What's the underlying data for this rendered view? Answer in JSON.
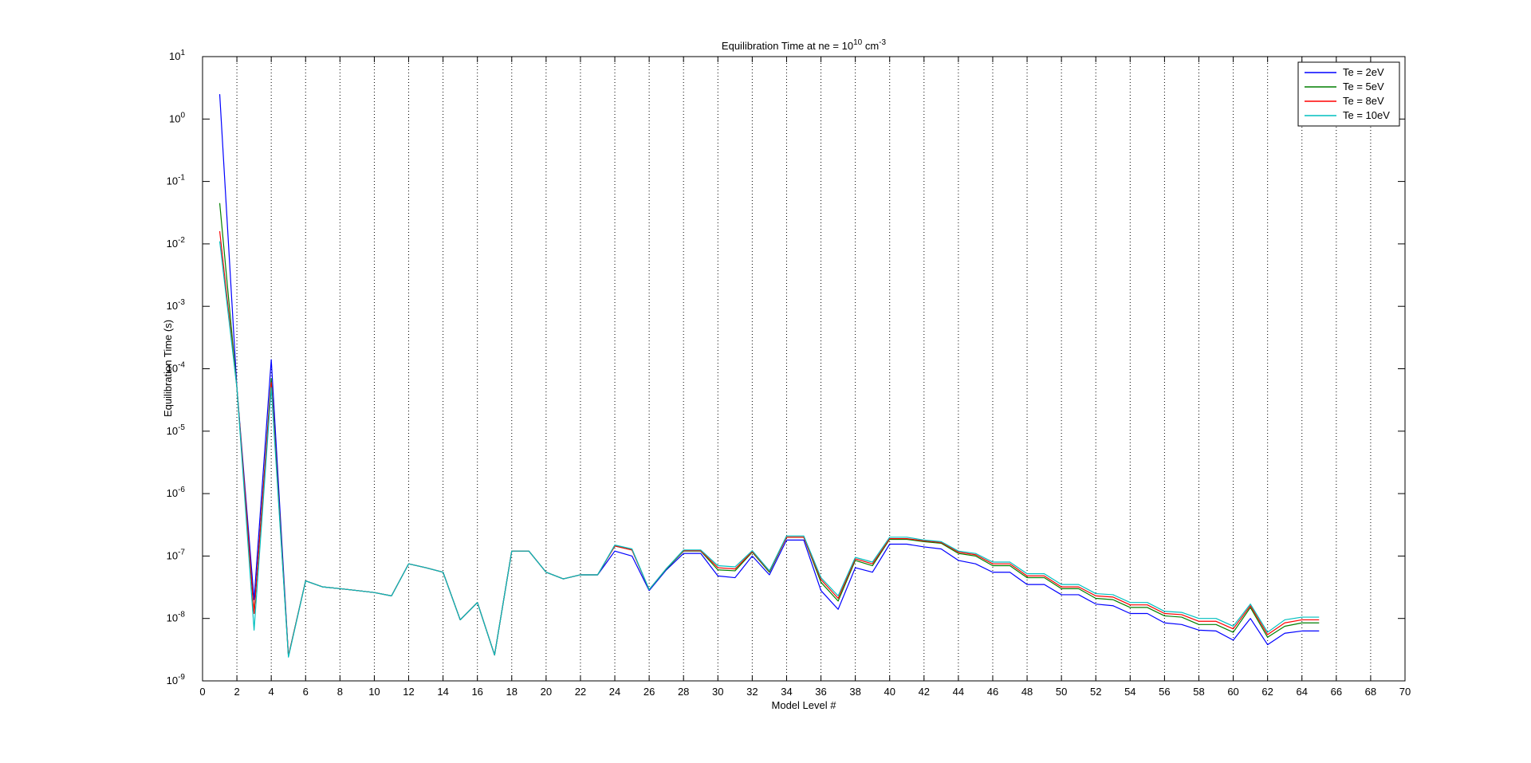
{
  "chart_data": {
    "type": "line",
    "title": "Equilibration Time at ne = 10",
    "title_exponent": "10",
    "title_unit": "cm",
    "title_unit_exponent": "-3",
    "xlabel": "Model Level #",
    "ylabel": "Equilibration Time (s)",
    "xlim": [
      0,
      70
    ],
    "ylim": [
      1e-09,
      10
    ],
    "yscale": "log",
    "x_ticks": [
      "0",
      "2",
      "4",
      "6",
      "8",
      "10",
      "12",
      "14",
      "16",
      "18",
      "20",
      "22",
      "24",
      "26",
      "28",
      "30",
      "32",
      "34",
      "36",
      "38",
      "40",
      "42",
      "44",
      "46",
      "48",
      "50",
      "52",
      "54",
      "56",
      "58",
      "60",
      "62",
      "64",
      "66",
      "68",
      "70"
    ],
    "y_ticks": [
      {
        "base": "10",
        "exp": "-9"
      },
      {
        "base": "10",
        "exp": "-8"
      },
      {
        "base": "10",
        "exp": "-7"
      },
      {
        "base": "10",
        "exp": "-6"
      },
      {
        "base": "10",
        "exp": "-5"
      },
      {
        "base": "10",
        "exp": "-4"
      },
      {
        "base": "10",
        "exp": "-3"
      },
      {
        "base": "10",
        "exp": "-2"
      },
      {
        "base": "10",
        "exp": "-1"
      },
      {
        "base": "10",
        "exp": "0"
      },
      {
        "base": "10",
        "exp": "1"
      }
    ],
    "grid": "vertical dotted lines at even x ticks",
    "legend_position": "top-right",
    "x": [
      1,
      2,
      3,
      4,
      5,
      6,
      7,
      8,
      9,
      10,
      11,
      12,
      13,
      14,
      15,
      16,
      17,
      18,
      19,
      20,
      21,
      22,
      23,
      24,
      25,
      26,
      27,
      28,
      29,
      30,
      31,
      32,
      33,
      34,
      35,
      36,
      37,
      38,
      39,
      40,
      41,
      42,
      43,
      44,
      45,
      46,
      47,
      48,
      49,
      50,
      51,
      52,
      53,
      54,
      55,
      56,
      57,
      58,
      59,
      60,
      61,
      62,
      63,
      64,
      65
    ],
    "series": [
      {
        "name": "Te = 2eV",
        "color": "#0000ff",
        "values": [
          2.5,
          5e-05,
          2e-08,
          0.00014,
          2.5e-09,
          4e-08,
          3.2e-08,
          3e-08,
          2.8e-08,
          2.6e-08,
          2.3e-08,
          7.5e-08,
          6.5e-08,
          5.5e-08,
          9.5e-09,
          1.8e-08,
          2.6e-09,
          1.2e-07,
          1.2e-07,
          5.5e-08,
          4.3e-08,
          5e-08,
          5e-08,
          1.2e-07,
          1e-07,
          2.8e-08,
          6e-08,
          1.1e-07,
          1.1e-07,
          4.8e-08,
          4.5e-08,
          1e-07,
          5e-08,
          1.8e-07,
          1.8e-07,
          2.8e-08,
          1.4e-08,
          6.5e-08,
          5.5e-08,
          1.55e-07,
          1.55e-07,
          1.4e-07,
          1.3e-07,
          8.5e-08,
          7.5e-08,
          5.5e-08,
          5.5e-08,
          3.5e-08,
          3.5e-08,
          2.4e-08,
          2.4e-08,
          1.7e-08,
          1.6e-08,
          1.2e-08,
          1.2e-08,
          8.5e-09,
          8e-09,
          6.5e-09,
          6.3e-09,
          4.5e-09,
          1e-08,
          3.8e-09,
          5.8e-09,
          6.3e-09,
          6.3e-09
        ]
      },
      {
        "name": "Te = 5eV",
        "color": "#007f00",
        "values": [
          0.045,
          5e-05,
          1.2e-08,
          7e-05,
          2.5e-09,
          4e-08,
          3.2e-08,
          3e-08,
          2.8e-08,
          2.6e-08,
          2.3e-08,
          7.5e-08,
          6.5e-08,
          5.5e-08,
          9.5e-09,
          1.8e-08,
          2.6e-09,
          1.2e-07,
          1.2e-07,
          5.5e-08,
          4.3e-08,
          5e-08,
          5e-08,
          1.45e-07,
          1.25e-07,
          2.9e-08,
          6.2e-08,
          1.2e-07,
          1.2e-07,
          6e-08,
          5.8e-08,
          1.15e-07,
          5.5e-08,
          2e-07,
          2e-07,
          3.8e-08,
          1.9e-08,
          8.5e-08,
          7e-08,
          1.85e-07,
          1.85e-07,
          1.7e-07,
          1.6e-07,
          1.1e-07,
          1e-07,
          7e-08,
          7e-08,
          4.5e-08,
          4.5e-08,
          3e-08,
          3e-08,
          2.1e-08,
          2e-08,
          1.5e-08,
          1.5e-08,
          1.1e-08,
          1.05e-08,
          8e-09,
          8e-09,
          6e-09,
          1.5e-08,
          5e-09,
          7.5e-09,
          8.5e-09,
          8.5e-09
        ]
      },
      {
        "name": "Te = 8eV",
        "color": "#ff0000",
        "values": [
          0.016,
          5e-05,
          1.2e-08,
          6e-05,
          2.5e-09,
          4e-08,
          3.2e-08,
          3e-08,
          2.8e-08,
          2.6e-08,
          2.3e-08,
          7.5e-08,
          6.5e-08,
          5.5e-08,
          9.5e-09,
          1.8e-08,
          2.6e-09,
          1.2e-07,
          1.2e-07,
          5.5e-08,
          4.3e-08,
          5e-08,
          5e-08,
          1.45e-07,
          1.25e-07,
          2.9e-08,
          6.3e-08,
          1.22e-07,
          1.22e-07,
          6.5e-08,
          6.2e-08,
          1.18e-07,
          5.7e-08,
          2e-07,
          2e-07,
          4.2e-08,
          2.1e-08,
          9e-08,
          7.5e-08,
          1.9e-07,
          1.9e-07,
          1.75e-07,
          1.65e-07,
          1.15e-07,
          1.05e-07,
          7.5e-08,
          7.5e-08,
          4.8e-08,
          4.8e-08,
          3.2e-08,
          3.2e-08,
          2.3e-08,
          2.2e-08,
          1.65e-08,
          1.65e-08,
          1.2e-08,
          1.15e-08,
          9e-09,
          9e-09,
          6.8e-09,
          1.6e-08,
          5.5e-09,
          8.5e-09,
          9.5e-09,
          9.5e-09
        ]
      },
      {
        "name": "Te = 10eV",
        "color": "#00bfbf",
        "values": [
          0.011,
          5e-05,
          6.5e-09,
          5e-05,
          2.4e-09,
          4e-08,
          3.2e-08,
          3e-08,
          2.8e-08,
          2.6e-08,
          2.3e-08,
          7.5e-08,
          6.5e-08,
          5.5e-08,
          9.5e-09,
          1.8e-08,
          2.6e-09,
          1.2e-07,
          1.2e-07,
          5.5e-08,
          4.3e-08,
          5e-08,
          5e-08,
          1.5e-07,
          1.3e-07,
          2.9e-08,
          6.3e-08,
          1.25e-07,
          1.25e-07,
          7e-08,
          6.7e-08,
          1.22e-07,
          5.8e-08,
          2.1e-07,
          2.1e-07,
          4.5e-08,
          2.3e-08,
          9.5e-08,
          8e-08,
          2e-07,
          2e-07,
          1.8e-07,
          1.7e-07,
          1.2e-07,
          1.1e-07,
          8e-08,
          8e-08,
          5.2e-08,
          5.2e-08,
          3.5e-08,
          3.5e-08,
          2.5e-08,
          2.4e-08,
          1.8e-08,
          1.8e-08,
          1.3e-08,
          1.25e-08,
          1e-08,
          1e-08,
          7.5e-09,
          1.7e-08,
          6e-09,
          9.5e-09,
          1.05e-08,
          1.05e-08
        ]
      }
    ]
  }
}
